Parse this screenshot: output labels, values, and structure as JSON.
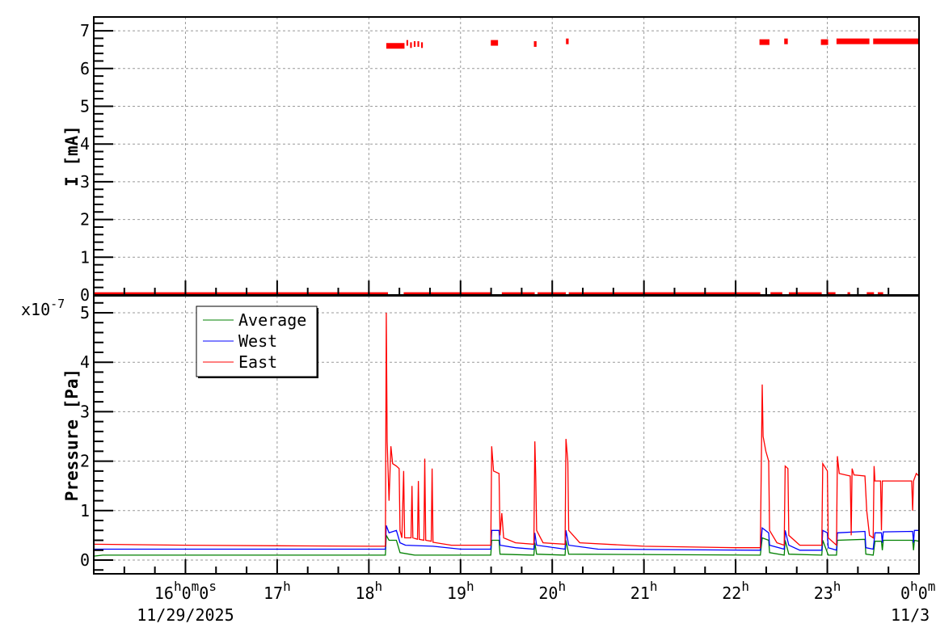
{
  "chart_data": [
    {
      "type": "scatter",
      "ylabel": "I [mA]",
      "ylim": [
        0,
        7.3
      ],
      "xlim_hours": [
        15,
        24
      ],
      "yticks": [
        "0",
        "1",
        "2",
        "3",
        "4",
        "5",
        "6",
        "7"
      ],
      "grid": true,
      "series": [
        {
          "color": "#ff0000",
          "segments": [
            [
              15.0,
              18.2,
              0.02
            ],
            [
              18.38,
              19.32,
              0.02
            ],
            [
              19.45,
              19.8,
              0.02
            ],
            [
              19.84,
              20.14,
              0.02
            ],
            [
              20.18,
              22.26,
              0.02
            ],
            [
              22.38,
              22.5,
              0.02
            ],
            [
              22.58,
              22.93,
              0.02
            ],
            [
              23.0,
              23.08,
              0.02
            ],
            [
              23.22,
              23.24,
              0.02
            ],
            [
              23.43,
              23.5,
              0.02
            ],
            [
              23.55,
              23.6,
              0.02
            ],
            [
              18.19,
              18.38,
              6.6
            ],
            [
              18.41,
              18.42,
              6.68
            ],
            [
              18.45,
              18.46,
              6.62
            ],
            [
              18.49,
              18.5,
              6.65
            ],
            [
              18.53,
              18.54,
              6.65
            ],
            [
              18.57,
              18.58,
              6.62
            ],
            [
              19.33,
              19.4,
              6.68
            ],
            [
              19.8,
              19.82,
              6.65
            ],
            [
              20.15,
              20.17,
              6.72
            ],
            [
              22.26,
              22.36,
              6.7
            ],
            [
              22.53,
              22.56,
              6.72
            ],
            [
              22.93,
              23.0,
              6.7
            ],
            [
              23.1,
              23.45,
              6.72
            ],
            [
              23.5,
              24.0,
              6.72
            ]
          ]
        }
      ]
    },
    {
      "type": "line",
      "ylabel": "Pressure [Pa]",
      "y_multiplier": "x10",
      "y_multiplier_exp": "-7",
      "ylim": [
        -0.28,
        5.3
      ],
      "xlim_hours": [
        15,
        24
      ],
      "yticks": [
        "0",
        "1",
        "2",
        "3",
        "4",
        "5"
      ],
      "grid": true,
      "legend_position": "top-left",
      "x_ticks": [
        {
          "hour": 16,
          "parts": [
            [
              "16",
              ""
            ],
            [
              "h",
              "sup"
            ],
            [
              "0",
              ""
            ],
            [
              "m",
              "sup"
            ],
            [
              "0",
              ""
            ],
            [
              "s",
              "sup"
            ]
          ],
          "date": "11/29/2025"
        },
        {
          "hour": 17,
          "parts": [
            [
              "17",
              ""
            ],
            [
              "h",
              "sup"
            ]
          ]
        },
        {
          "hour": 18,
          "parts": [
            [
              "18",
              ""
            ],
            [
              "h",
              "sup"
            ]
          ]
        },
        {
          "hour": 19,
          "parts": [
            [
              "19",
              ""
            ],
            [
              "h",
              "sup"
            ]
          ]
        },
        {
          "hour": 20,
          "parts": [
            [
              "20",
              ""
            ],
            [
              "h",
              "sup"
            ]
          ]
        },
        {
          "hour": 21,
          "parts": [
            [
              "21",
              ""
            ],
            [
              "h",
              "sup"
            ]
          ]
        },
        {
          "hour": 22,
          "parts": [
            [
              "22",
              ""
            ],
            [
              "h",
              "sup"
            ]
          ]
        },
        {
          "hour": 23,
          "parts": [
            [
              "23",
              ""
            ],
            [
              "h",
              "sup"
            ]
          ]
        },
        {
          "hour": 24,
          "parts": [
            [
              "0",
              ""
            ],
            [
              "h",
              "sup"
            ],
            [
              "0",
              ""
            ],
            [
              "m",
              "sup"
            ]
          ],
          "date": "11/3"
        }
      ],
      "series": [
        {
          "name": "Average",
          "color": "#008000",
          "points": [
            [
              15,
              0.08
            ],
            [
              15.1,
              0.1
            ],
            [
              18.18,
              0.1
            ],
            [
              18.19,
              0.5
            ],
            [
              18.22,
              0.4
            ],
            [
              18.3,
              0.4
            ],
            [
              18.34,
              0.15
            ],
            [
              18.5,
              0.1
            ],
            [
              19.33,
              0.1
            ],
            [
              19.34,
              0.4
            ],
            [
              19.42,
              0.4
            ],
            [
              19.43,
              0.12
            ],
            [
              19.8,
              0.1
            ],
            [
              19.81,
              0.35
            ],
            [
              19.83,
              0.12
            ],
            [
              20.14,
              0.1
            ],
            [
              20.15,
              0.4
            ],
            [
              20.18,
              0.12
            ],
            [
              22.27,
              0.1
            ],
            [
              22.29,
              0.45
            ],
            [
              22.36,
              0.4
            ],
            [
              22.37,
              0.15
            ],
            [
              22.53,
              0.1
            ],
            [
              22.54,
              0.4
            ],
            [
              22.58,
              0.12
            ],
            [
              22.94,
              0.1
            ],
            [
              22.95,
              0.4
            ],
            [
              23.01,
              0.1
            ],
            [
              23.1,
              0.1
            ],
            [
              23.11,
              0.4
            ],
            [
              23.41,
              0.42
            ],
            [
              23.42,
              0.12
            ],
            [
              23.5,
              0.1
            ],
            [
              23.52,
              0.38
            ],
            [
              23.59,
              0.38
            ],
            [
              23.6,
              0.2
            ],
            [
              23.61,
              0.4
            ],
            [
              23.93,
              0.4
            ],
            [
              23.94,
              0.2
            ],
            [
              23.95,
              0.4
            ],
            [
              24,
              0.38
            ]
          ]
        },
        {
          "name": "West",
          "color": "#0000ff",
          "points": [
            [
              15,
              0.22
            ],
            [
              18.18,
              0.22
            ],
            [
              18.19,
              0.7
            ],
            [
              18.22,
              0.55
            ],
            [
              18.3,
              0.6
            ],
            [
              18.34,
              0.35
            ],
            [
              18.4,
              0.3
            ],
            [
              18.7,
              0.28
            ],
            [
              19,
              0.22
            ],
            [
              19.33,
              0.22
            ],
            [
              19.34,
              0.6
            ],
            [
              19.42,
              0.6
            ],
            [
              19.43,
              0.3
            ],
            [
              19.6,
              0.25
            ],
            [
              19.8,
              0.22
            ],
            [
              19.81,
              0.55
            ],
            [
              19.83,
              0.3
            ],
            [
              20.14,
              0.22
            ],
            [
              20.15,
              0.6
            ],
            [
              20.18,
              0.3
            ],
            [
              20.5,
              0.22
            ],
            [
              22.27,
              0.2
            ],
            [
              22.29,
              0.65
            ],
            [
              22.36,
              0.55
            ],
            [
              22.37,
              0.3
            ],
            [
              22.53,
              0.22
            ],
            [
              22.54,
              0.6
            ],
            [
              22.58,
              0.3
            ],
            [
              22.7,
              0.2
            ],
            [
              22.94,
              0.2
            ],
            [
              22.95,
              0.6
            ],
            [
              23.0,
              0.55
            ],
            [
              23.01,
              0.25
            ],
            [
              23.1,
              0.2
            ],
            [
              23.11,
              0.55
            ],
            [
              23.41,
              0.58
            ],
            [
              23.42,
              0.25
            ],
            [
              23.5,
              0.22
            ],
            [
              23.52,
              0.55
            ],
            [
              23.59,
              0.55
            ],
            [
              23.6,
              0.35
            ],
            [
              23.61,
              0.57
            ],
            [
              23.93,
              0.58
            ],
            [
              23.94,
              0.35
            ],
            [
              23.95,
              0.6
            ],
            [
              24,
              0.6
            ]
          ]
        },
        {
          "name": "East",
          "color": "#ff0000",
          "points": [
            [
              15,
              0.32
            ],
            [
              16,
              0.3
            ],
            [
              17,
              0.29
            ],
            [
              18,
              0.28
            ],
            [
              18.18,
              0.28
            ],
            [
              18.19,
              5.0
            ],
            [
              18.2,
              2.4
            ],
            [
              18.22,
              1.2
            ],
            [
              18.24,
              2.3
            ],
            [
              18.26,
              1.95
            ],
            [
              18.3,
              1.9
            ],
            [
              18.33,
              1.85
            ],
            [
              18.34,
              0.6
            ],
            [
              18.36,
              0.45
            ],
            [
              18.38,
              1.8
            ],
            [
              18.39,
              0.45
            ],
            [
              18.46,
              0.45
            ],
            [
              18.47,
              1.5
            ],
            [
              18.48,
              0.45
            ],
            [
              18.53,
              0.42
            ],
            [
              18.54,
              1.6
            ],
            [
              18.55,
              0.42
            ],
            [
              18.6,
              0.4
            ],
            [
              18.61,
              2.05
            ],
            [
              18.62,
              0.4
            ],
            [
              18.68,
              0.38
            ],
            [
              18.69,
              1.85
            ],
            [
              18.7,
              0.36
            ],
            [
              18.9,
              0.3
            ],
            [
              19.33,
              0.3
            ],
            [
              19.34,
              2.3
            ],
            [
              19.36,
              1.8
            ],
            [
              19.42,
              1.75
            ],
            [
              19.43,
              0.5
            ],
            [
              19.45,
              0.95
            ],
            [
              19.47,
              0.45
            ],
            [
              19.6,
              0.35
            ],
            [
              19.8,
              0.32
            ],
            [
              19.81,
              2.4
            ],
            [
              19.82,
              1.7
            ],
            [
              19.83,
              0.6
            ],
            [
              19.9,
              0.35
            ],
            [
              20.14,
              0.32
            ],
            [
              20.15,
              2.45
            ],
            [
              20.17,
              2.0
            ],
            [
              20.18,
              0.6
            ],
            [
              20.3,
              0.35
            ],
            [
              21,
              0.28
            ],
            [
              22,
              0.25
            ],
            [
              22.27,
              0.25
            ],
            [
              22.29,
              3.55
            ],
            [
              22.3,
              2.5
            ],
            [
              22.33,
              2.2
            ],
            [
              22.36,
              2.0
            ],
            [
              22.37,
              0.6
            ],
            [
              22.45,
              0.35
            ],
            [
              22.53,
              0.3
            ],
            [
              22.54,
              1.9
            ],
            [
              22.57,
              1.85
            ],
            [
              22.58,
              0.5
            ],
            [
              22.7,
              0.3
            ],
            [
              22.94,
              0.3
            ],
            [
              22.95,
              1.95
            ],
            [
              23.0,
              1.8
            ],
            [
              23.01,
              0.45
            ],
            [
              23.1,
              0.3
            ],
            [
              23.11,
              2.1
            ],
            [
              23.13,
              1.75
            ],
            [
              23.25,
              1.7
            ],
            [
              23.26,
              0.5
            ],
            [
              23.27,
              1.85
            ],
            [
              23.29,
              1.72
            ],
            [
              23.41,
              1.7
            ],
            [
              23.43,
              1.0
            ],
            [
              23.46,
              0.5
            ],
            [
              23.5,
              0.45
            ],
            [
              23.51,
              1.9
            ],
            [
              23.52,
              1.6
            ],
            [
              23.58,
              1.6
            ],
            [
              23.59,
              0.6
            ],
            [
              23.6,
              1.6
            ],
            [
              23.92,
              1.6
            ],
            [
              23.93,
              1.0
            ],
            [
              23.94,
              1.6
            ],
            [
              23.97,
              1.75
            ],
            [
              24,
              1.7
            ]
          ]
        }
      ]
    }
  ]
}
